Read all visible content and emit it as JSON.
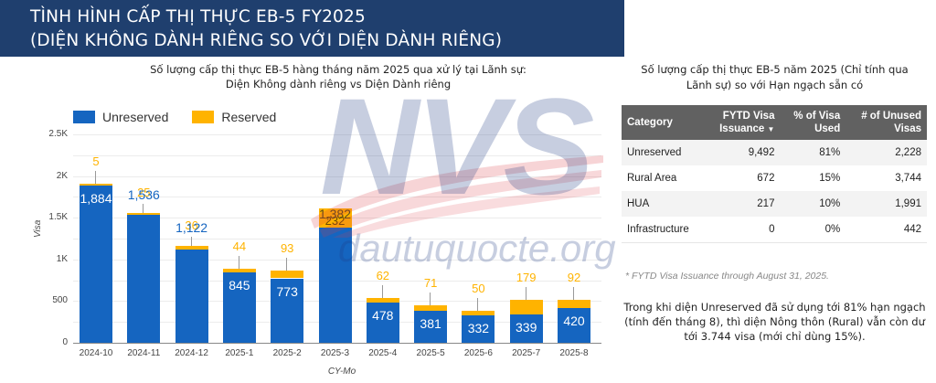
{
  "banner": {
    "line1": "TÌNH HÌNH CẤP THỊ THỰC EB-5 FY2025",
    "line2": "(DIỆN KHÔNG DÀNH RIÊNG SO VỚI DIỆN DÀNH RIÊNG)",
    "color": "#1f3f6e"
  },
  "chart": {
    "title_line1": "Số lượng cấp thị thực EB-5 hàng tháng năm 2025 qua xử lý tại Lãnh sự:",
    "title_line2": "Diện Không dành riêng vs Diện Dành riêng",
    "legend": [
      {
        "label": "Unreserved",
        "color": "#1565c0"
      },
      {
        "label": "Reserved",
        "color": "#ffb300"
      }
    ],
    "y_ticks": [
      "0",
      "500",
      "1K",
      "1.5K",
      "2K",
      "2.5K"
    ],
    "y_label": "Visa",
    "x_label": "CY-Mo"
  },
  "chart_data": {
    "type": "bar",
    "stacked": true,
    "title": "Số lượng cấp thị thực EB-5 hàng tháng năm 2025 qua xử lý tại Lãnh sự: Diện Không dành riêng vs Diện Dành riêng",
    "xlabel": "CY-Mo",
    "ylabel": "Visa",
    "ylim": [
      0,
      2500
    ],
    "y_ticks": [
      0,
      500,
      1000,
      1500,
      2000,
      2500
    ],
    "grid": true,
    "legend_position": "top-left",
    "categories": [
      "2024-10",
      "2024-11",
      "2024-12",
      "2025-1",
      "2025-2",
      "2025-3",
      "2025-4",
      "2025-5",
      "2025-6",
      "2025-7",
      "2025-8"
    ],
    "series": [
      {
        "name": "Unreserved",
        "color": "#1565c0",
        "values": [
          1884,
          1536,
          1122,
          845,
          773,
          1382,
          478,
          381,
          332,
          339,
          420
        ]
      },
      {
        "name": "Reserved",
        "color": "#ffb300",
        "values": [
          5,
          25,
          36,
          44,
          93,
          232,
          62,
          71,
          50,
          179,
          92
        ]
      }
    ],
    "labels": {
      "unreserved": [
        "1,884",
        "1,536",
        "1,122",
        "845",
        "773",
        "1,382",
        "478",
        "381",
        "332",
        "339",
        "420"
      ],
      "reserved": [
        "5",
        "25",
        "36",
        "44",
        "93",
        "232",
        "62",
        "71",
        "50",
        "179",
        "92"
      ]
    }
  },
  "table": {
    "title_line1": "Số lượng cấp thị thực EB-5 năm 2025 (Chỉ tính qua",
    "title_line2": "Lãnh sự) so với Hạn ngạch sẵn có",
    "headers": [
      {
        "line1": "Category",
        "line2": ""
      },
      {
        "line1": "FYTD Visa",
        "line2": "Issuance",
        "sort": "▼"
      },
      {
        "line1": "% of Visa",
        "line2": "Used"
      },
      {
        "line1": "# of Unused",
        "line2": "Visas"
      }
    ],
    "rows": [
      {
        "category": "Unreserved",
        "issuance": "9,492",
        "pct_used": "81%",
        "unused": "2,228"
      },
      {
        "category": "Rural Area",
        "issuance": "672",
        "pct_used": "15%",
        "unused": "3,744"
      },
      {
        "category": "HUA",
        "issuance": "217",
        "pct_used": "10%",
        "unused": "1,991"
      },
      {
        "category": "Infrastructure",
        "issuance": "0",
        "pct_used": "0%",
        "unused": "442"
      }
    ],
    "footnote": "* FYTD Visa Issuance through August 31, 2025.",
    "summary": "Trong khi diện Unreserved đã sử dụng tới 81% hạn ngạch (tính đến tháng 8), thì diện Nông thôn (Rural) vẫn còn dư tới 3.744 visa (mới chỉ dùng 15%)."
  },
  "watermark": {
    "brand": "NVS",
    "site": "dautuquocte.org"
  }
}
